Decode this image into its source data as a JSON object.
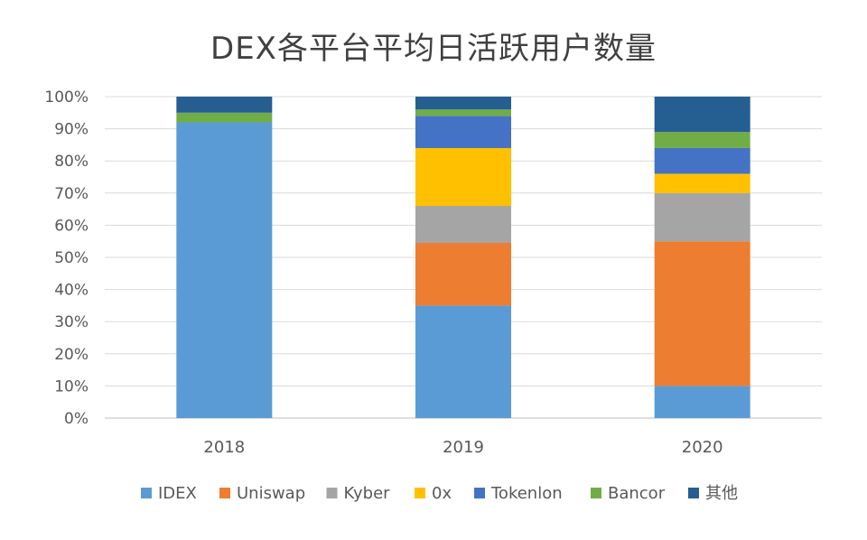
{
  "chart_data": {
    "type": "bar",
    "stacked": true,
    "title": "DEX各平台平均日活跃用户数量",
    "categories": [
      "2018",
      "2019",
      "2020"
    ],
    "ylim": [
      0,
      100
    ],
    "yticks": [
      "0%",
      "10%",
      "20%",
      "30%",
      "40%",
      "50%",
      "60%",
      "70%",
      "80%",
      "90%",
      "100%"
    ],
    "grid": true,
    "legend_position": "bottom",
    "series": [
      {
        "name": "IDEX",
        "color": "#5B9BD5",
        "values": [
          92,
          35,
          10
        ]
      },
      {
        "name": "Uniswap",
        "color": "#ED7D31",
        "values": [
          0,
          19.5,
          45
        ]
      },
      {
        "name": "Kyber",
        "color": "#A5A5A5",
        "values": [
          0,
          11.5,
          15
        ]
      },
      {
        "name": "0x",
        "color": "#FFC000",
        "values": [
          0,
          18,
          6
        ]
      },
      {
        "name": "Tokenlon",
        "color": "#4472C4",
        "values": [
          0,
          10,
          8
        ]
      },
      {
        "name": "Bancor",
        "color": "#70AD47",
        "values": [
          3,
          2,
          5
        ]
      },
      {
        "name": "其他",
        "color": "#255E91",
        "values": [
          5,
          4,
          11
        ]
      }
    ]
  }
}
